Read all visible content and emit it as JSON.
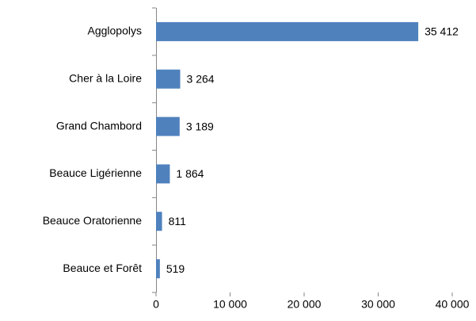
{
  "chart_data": {
    "type": "hbar",
    "categories": [
      "Agglopolys",
      "Cher à la Loire",
      "Grand Chambord",
      "Beauce Ligérienne",
      "Beauce Oratorienne",
      "Beauce et Forêt"
    ],
    "values": [
      35412,
      3264,
      3189,
      1864,
      811,
      519
    ],
    "value_labels": [
      "35 412",
      "3 264",
      "3 189",
      "1 864",
      "811",
      "519"
    ],
    "color": "#4f81bd",
    "xlim": [
      0,
      40000
    ],
    "xticks": [
      0,
      {
        "value": 10000,
        "label": "10 000"
      },
      {
        "value": 20000,
        "label": "20 000"
      },
      {
        "value": 30000,
        "label": "30 000"
      },
      {
        "value": 40000,
        "label": "40 000"
      }
    ],
    "grid": false
  }
}
